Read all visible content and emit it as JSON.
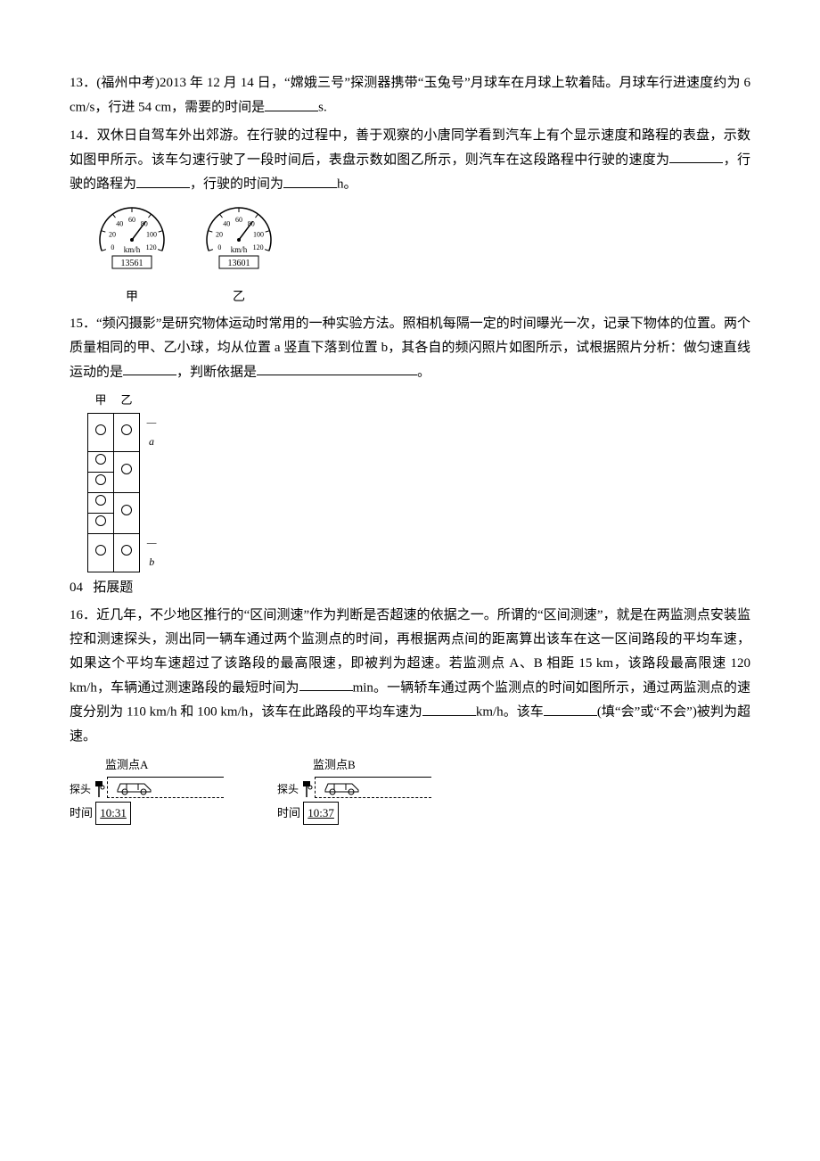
{
  "q13": {
    "number": "13．",
    "text_a": "(福州中考)2013 年 12 月 14 日，“嫦娥三号”探测器携带“玉兔号”月球车在月球上软着陆。月球车行进速度约为 6 cm/s，行进 54 cm，需要的时间是",
    "text_b": "s."
  },
  "q14": {
    "number": "14．",
    "text_a": "双休日自驾车外出郊游。在行驶的过程中，善于观察的小唐同学看到汽车上有个显示速度和路程的表盘，示数如图甲所示。该车匀速行驶了一段时间后，表盘示数如图乙所示，则汽车在这段路程中行驶的速度为",
    "text_b": "，行驶的路程为",
    "text_c": "，行驶的时间为",
    "text_d": "h。",
    "gauge": {
      "ticks": [
        "0",
        "20",
        "40",
        "60",
        "80",
        "100",
        "120"
      ],
      "unit": "km/h",
      "odometer_a": "13561",
      "odometer_b": "13601",
      "label_a": "甲",
      "label_b": "乙",
      "needle_angle_a": -30,
      "needle_angle_b": -30,
      "font_size": 8,
      "stroke": "#000000"
    }
  },
  "q15": {
    "number": "15．",
    "text_a": "“频闪摄影”是研究物体运动时常用的一种实验方法。照相机每隔一定的时间曝光一次，记录下物体的位置。两个质量相同的甲、乙小球，均从位置 a 竖直下落到位置 b，其各自的频闪照片如图所示，试根据照片分析：做匀速直线运动的是",
    "text_b": "，判断依据是",
    "text_c": "。",
    "strobe": {
      "head_left": "甲",
      "head_right": "乙",
      "side_a": "a",
      "side_b": "b",
      "left_pattern": [
        1,
        1,
        1,
        1,
        1,
        1
      ],
      "right_pattern": [
        1,
        1,
        0,
        1,
        0,
        1
      ]
    }
  },
  "section": {
    "num": "04",
    "title": "拓展题"
  },
  "q16": {
    "number": "16．",
    "text_a": "近几年，不少地区推行的“区间测速”作为判断是否超速的依据之一。所谓的“区间测速”，就是在两监测点安装监控和测速探头，测出同一辆车通过两个监测点的时间，再根据两点间的距离算出该车在这一区间路段的平均车速，如果这个平均车速超过了该路段的最高限速，即被判为超速。若监测点 A、B 相距 15 km，该路段最高限速 120 km/h，车辆通过测速路段的最短时间为",
    "text_b": "min。一辆轿车通过两个监测点的时间如图所示，通过两监测点的速度分别为 110 km/h 和 100 km/h，该车在此路段的平均车速为",
    "text_c": "km/h。该车",
    "text_d": "(填“会”或“不会”)被判为超速。",
    "monitor": {
      "label_a": "监测点A",
      "label_b": "监测点B",
      "probe": "探头",
      "time_lbl": "时间",
      "time_a": "10:31",
      "time_b": "10:37"
    }
  }
}
